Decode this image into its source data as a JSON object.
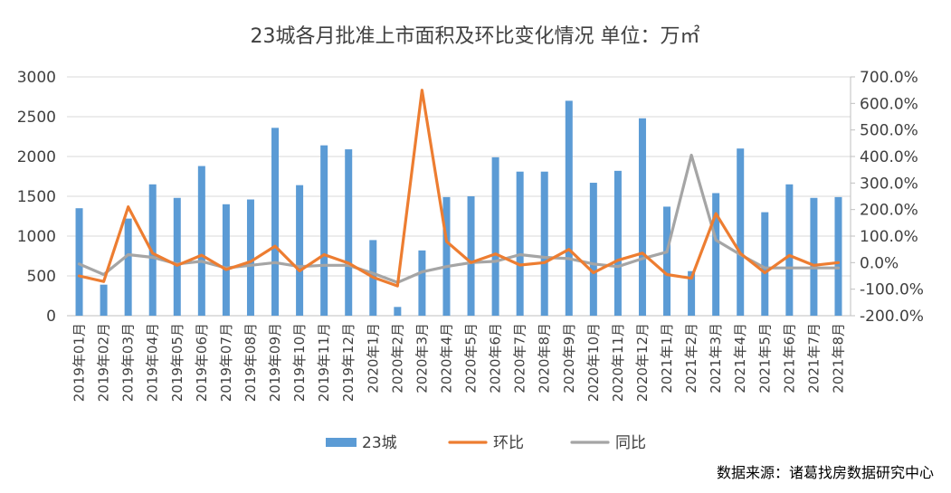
{
  "chart_data": {
    "type": "bar",
    "title": "23城各月批准上市面积及环比变化情况  单位：万㎡",
    "source": "数据来源：诸葛找房数据研究中心",
    "colors": {
      "bar": "#5b9bd5",
      "mom": "#ed7d31",
      "yoy": "#a5a5a5"
    },
    "categories": [
      "2019年01月",
      "2019年02月",
      "2019年03月",
      "2019年04月",
      "2019年05月",
      "2019年06月",
      "2019年07月",
      "2019年08月",
      "2019年09月",
      "2019年10月",
      "2019年11月",
      "2019年12月",
      "2020年1月",
      "2020年2月",
      "2020年3月",
      "2020年4月",
      "2020年5月",
      "2020年6月",
      "2020年7月",
      "2020年8月",
      "2020年9月",
      "2020年10月",
      "2020年11月",
      "2020年12月",
      "2021年1月",
      "2021年2月",
      "2021年3月",
      "2021年4月",
      "2021年5月",
      "2021年6月",
      "2021年7月",
      "2021年8月"
    ],
    "y_left": {
      "min": 0,
      "max": 3000,
      "ticks": [
        "0",
        "500",
        "1000",
        "1500",
        "2000",
        "2500",
        "3000"
      ]
    },
    "y_right": {
      "min": -200,
      "max": 700,
      "ticks": [
        "-200.0%",
        "-100.0%",
        "0.0%",
        "100.0%",
        "200.0%",
        "300.0%",
        "400.0%",
        "500.0%",
        "600.0%",
        "700.0%"
      ]
    },
    "series": [
      {
        "name": "23城",
        "type": "bar",
        "axis": "left",
        "values": [
          1350,
          390,
          1220,
          1650,
          1480,
          1880,
          1400,
          1460,
          2360,
          1640,
          2140,
          2090,
          950,
          110,
          820,
          1490,
          1500,
          1990,
          1810,
          1810,
          2700,
          1670,
          1820,
          2480,
          1370,
          560,
          1540,
          2100,
          1300,
          1650,
          1480,
          1490
        ]
      },
      {
        "name": "环比",
        "type": "line",
        "axis": "right",
        "values": [
          -50,
          -71,
          210,
          35,
          -10,
          28,
          -26,
          4,
          62,
          -31,
          30,
          -2,
          -55,
          -88,
          650,
          80,
          0,
          33,
          -9,
          0,
          50,
          -38,
          9,
          36,
          -45,
          -59,
          185,
          35,
          -38,
          27,
          -10,
          0
        ]
      },
      {
        "name": "同比",
        "type": "line",
        "axis": "right",
        "values": [
          -5,
          -45,
          30,
          20,
          -5,
          5,
          -20,
          -10,
          0,
          -15,
          -10,
          -10,
          -40,
          -75,
          -35,
          -15,
          0,
          5,
          30,
          20,
          15,
          -5,
          -15,
          15,
          40,
          405,
          85,
          30,
          -20,
          -20,
          -20,
          -20
        ]
      }
    ]
  }
}
